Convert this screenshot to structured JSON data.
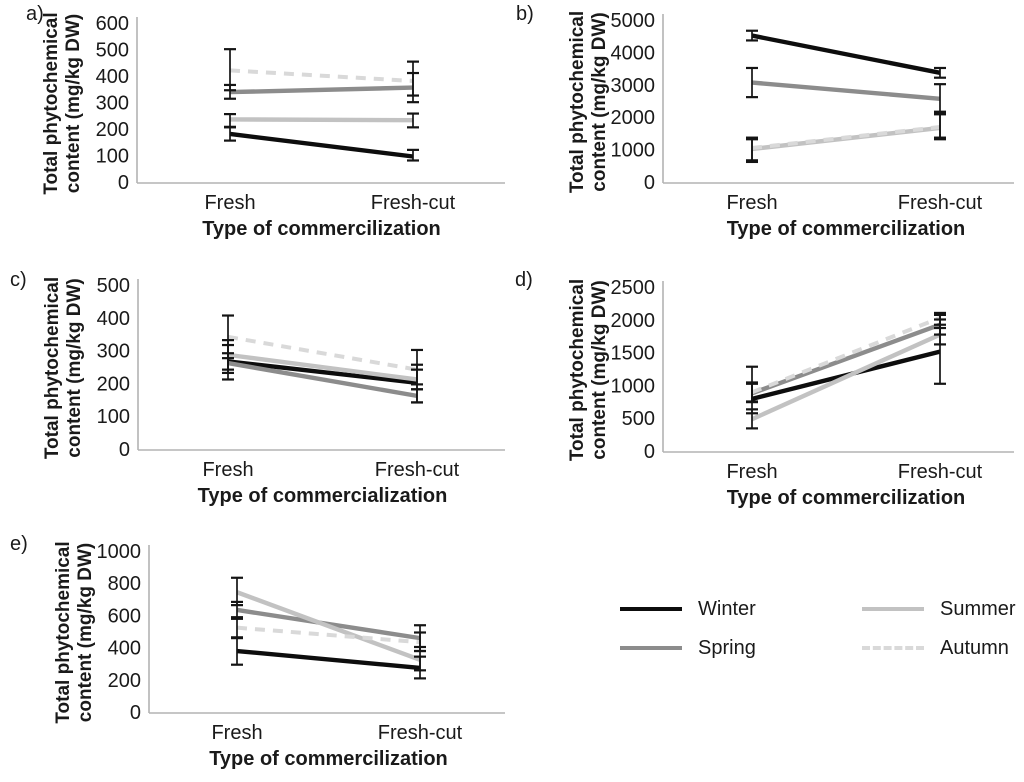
{
  "colors": {
    "background": "#ffffff",
    "axis_line": "#b3b3b3",
    "error_bar": "#141414",
    "text": "#1a1a1a"
  },
  "series_styles": {
    "Winter": {
      "color": "#0d0d0d",
      "dash": "none"
    },
    "Spring": {
      "color": "#8c8c8c",
      "dash": "none"
    },
    "Summer": {
      "color": "#c2c2c2",
      "dash": "none"
    },
    "Autumn": {
      "color": "#d9d9d9",
      "dash": "10 8"
    }
  },
  "legend": {
    "items": [
      {
        "series": "Winter",
        "label": "Winter"
      },
      {
        "series": "Spring",
        "label": "Spring"
      },
      {
        "series": "Summer",
        "label": "Summer"
      },
      {
        "series": "Autumn",
        "label": "Autumn"
      }
    ]
  },
  "chart_data": [
    {
      "id": "a",
      "panel_label": "a)",
      "type": "line",
      "x_categories": [
        "Fresh",
        "Fresh-cut"
      ],
      "xlabel": "Type of commercilization",
      "ylabel_lines": [
        "Total phytochemical",
        "content (mg/kg DW)"
      ],
      "ylim": [
        0,
        600
      ],
      "yticks": [
        0,
        100,
        200,
        300,
        400,
        500,
        600
      ],
      "grid": false,
      "series": [
        {
          "name": "Winter",
          "values": [
            185,
            100
          ],
          "err": [
            [
              160,
              210
            ],
            [
              85,
              125
            ]
          ]
        },
        {
          "name": "Spring",
          "values": [
            343,
            360
          ],
          "err": [
            [
              318,
              370
            ],
            [
              305,
              415
            ]
          ]
        },
        {
          "name": "Summer",
          "values": [
            240,
            237
          ],
          "err": [
            [
              212,
              260
            ],
            [
              210,
              262
            ]
          ]
        },
        {
          "name": "Autumn",
          "values": [
            425,
            385
          ],
          "err": [
            [
              350,
              505
            ],
            [
              330,
              458
            ]
          ]
        }
      ]
    },
    {
      "id": "b",
      "panel_label": "b)",
      "type": "line",
      "x_categories": [
        "Fresh",
        "Fresh-cut"
      ],
      "xlabel": "Type of commercilization",
      "ylabel_lines": [
        "Total phytochemical",
        "content (mg/kg DW)"
      ],
      "ylim": [
        0,
        5000
      ],
      "yticks": [
        0,
        1000,
        2000,
        3000,
        4000,
        5000
      ],
      "grid": false,
      "series": [
        {
          "name": "Winter",
          "values": [
            4550,
            3400
          ],
          "err": [
            [
              4400,
              4700
            ],
            [
              3250,
              3550
            ]
          ]
        },
        {
          "name": "Spring",
          "values": [
            3100,
            2600
          ],
          "err": [
            [
              2650,
              3550
            ],
            [
              2200,
              3050
            ]
          ]
        },
        {
          "name": "Summer",
          "values": [
            1050,
            1700
          ],
          "err": [
            [
              650,
              1350
            ],
            [
              1350,
              2150
            ]
          ]
        },
        {
          "name": "Autumn",
          "values": [
            1080,
            1730
          ],
          "err": [
            [
              700,
              1400
            ],
            [
              1400,
              2120
            ]
          ]
        }
      ]
    },
    {
      "id": "c",
      "panel_label": "c)",
      "type": "line",
      "x_categories": [
        "Fresh",
        "Fresh-cut"
      ],
      "xlabel": "Type of commercialization",
      "ylabel_lines": [
        "Total phytochemical",
        "content (mg/kg DW)"
      ],
      "ylim": [
        0,
        500
      ],
      "yticks": [
        0,
        100,
        200,
        300,
        400,
        500
      ],
      "grid": false,
      "series": [
        {
          "name": "Winter",
          "values": [
            270,
            205
          ],
          "err": [
            [
              215,
              320
            ],
            [
              145,
              260
            ]
          ]
        },
        {
          "name": "Spring",
          "values": [
            265,
            165
          ],
          "err": [
            [
              235,
              295
            ],
            [
              145,
              185
            ]
          ]
        },
        {
          "name": "Summer",
          "values": [
            290,
            215
          ],
          "err": [
            [
              245,
              335
            ],
            [
              185,
              245
            ]
          ]
        },
        {
          "name": "Autumn",
          "values": [
            345,
            245
          ],
          "err": [
            [
              280,
              410
            ],
            [
              200,
              305
            ]
          ]
        }
      ]
    },
    {
      "id": "d",
      "panel_label": "d)",
      "type": "line",
      "x_categories": [
        "Fresh",
        "Fresh-cut"
      ],
      "xlabel": "Type of commercilization",
      "ylabel_lines": [
        "Total phytochemical",
        "content (mg/kg DW)"
      ],
      "ylim": [
        0,
        2500
      ],
      "yticks": [
        0,
        500,
        1000,
        1500,
        2000,
        2500
      ],
      "grid": false,
      "series": [
        {
          "name": "Winter",
          "values": [
            810,
            1530
          ],
          "err": [
            [
              590,
              1040
            ],
            [
              1040,
              2020
            ]
          ]
        },
        {
          "name": "Spring",
          "values": [
            895,
            1940
          ],
          "err": [
            [
              770,
              1060
            ],
            [
              1790,
              2090
            ]
          ]
        },
        {
          "name": "Summer",
          "values": [
            500,
            1790
          ],
          "err": [
            [
              360,
              650
            ],
            [
              1640,
              1940
            ]
          ]
        },
        {
          "name": "Autumn",
          "values": [
            910,
            2045
          ],
          "err": [
            [
              760,
              1300
            ],
            [
              1890,
              2120
            ]
          ]
        }
      ]
    },
    {
      "id": "e",
      "panel_label": "e)",
      "type": "line",
      "x_categories": [
        "Fresh",
        "Fresh-cut"
      ],
      "xlabel": "Type of commercilization",
      "ylabel_lines": [
        "Total phytochemical",
        "content (mg/kg DW)"
      ],
      "ylim": [
        0,
        1000
      ],
      "yticks": [
        0,
        200,
        400,
        600,
        800,
        1000
      ],
      "grid": false,
      "series": [
        {
          "name": "Winter",
          "values": [
            385,
            280
          ],
          "err": [
            [
              300,
              465
            ],
            [
              215,
              350
            ]
          ]
        },
        {
          "name": "Spring",
          "values": [
            640,
            465
          ],
          "err": [
            [
              585,
              690
            ],
            [
              385,
              545
            ]
          ]
        },
        {
          "name": "Summer",
          "values": [
            750,
            330
          ],
          "err": [
            [
              670,
              840
            ],
            [
              265,
              410
            ]
          ]
        },
        {
          "name": "Autumn",
          "values": [
            530,
            440
          ],
          "err": [
            [
              470,
              595
            ],
            [
              385,
              500
            ]
          ]
        }
      ]
    }
  ]
}
